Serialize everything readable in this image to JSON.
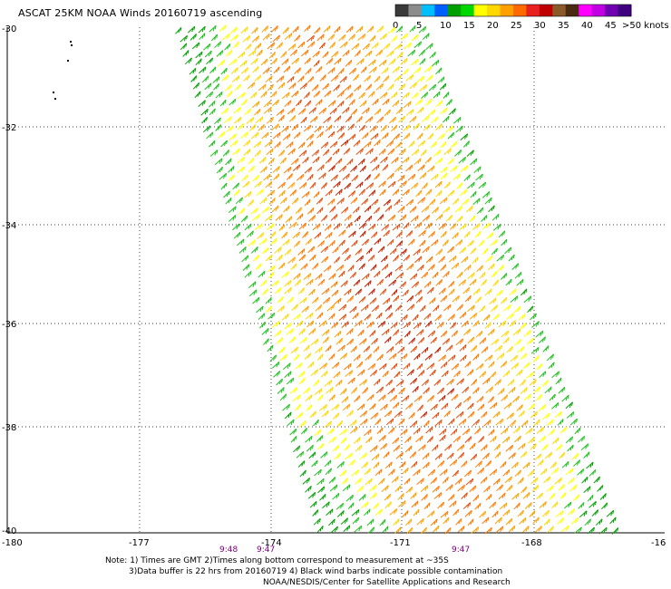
{
  "header": {
    "title": "ASCAT 25KM NOAA Winds 20160719 ascending"
  },
  "legend": {
    "colors": [
      "#3a3a3a",
      "#8c8c8c",
      "#00bfff",
      "#0060ff",
      "#00a000",
      "#00d800",
      "#ffff00",
      "#ffd800",
      "#ffa000",
      "#ff6a00",
      "#e82020",
      "#c00000",
      "#8b5a2b",
      "#4a2a10",
      "#ff00ff",
      "#c000e0",
      "#7000b0",
      "#400080"
    ],
    "tick_labels": [
      "0",
      "5",
      "10",
      "15",
      "20",
      "25",
      "30",
      "35",
      "40",
      "45",
      ">50 knots"
    ]
  },
  "axes": {
    "lon_labels": [
      "-180",
      "-177",
      "-174",
      "-171",
      "-168",
      "-16"
    ],
    "lat_labels": [
      "-30",
      "-32",
      "-34",
      "-36",
      "-38",
      "-40"
    ]
  },
  "times": [
    "9:48",
    "9:47",
    "9:47"
  ],
  "notes": {
    "line1": "Note: 1) Times are GMT 2)Times along bottom correspond to measurement at ~35S",
    "line2": "3)Data buffer is 22 hrs from 20160719 4) Black wind barbs indicate possible contamination",
    "line3": "NOAA/NESDIS/Center for Satellite Applications and Research"
  }
}
